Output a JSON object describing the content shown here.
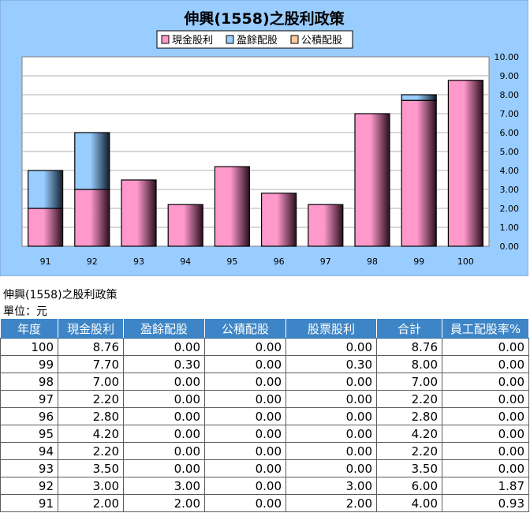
{
  "chart_data": {
    "type": "bar",
    "stacked": true,
    "title": "伸興(1558)之股利政策",
    "categories": [
      "91",
      "92",
      "93",
      "94",
      "95",
      "96",
      "97",
      "98",
      "99",
      "100"
    ],
    "series": [
      {
        "name": "現金股利",
        "values": [
          2.0,
          3.0,
          3.5,
          2.2,
          4.2,
          2.8,
          2.2,
          7.0,
          7.7,
          8.76
        ]
      },
      {
        "name": "盈餘配股",
        "values": [
          2.0,
          3.0,
          0.0,
          0.0,
          0.0,
          0.0,
          0.0,
          0.0,
          0.3,
          0.0
        ]
      },
      {
        "name": "公積配股",
        "values": [
          0.0,
          0.0,
          0.0,
          0.0,
          0.0,
          0.0,
          0.0,
          0.0,
          0.0,
          0.0
        ]
      }
    ],
    "yticks": [
      "0.00",
      "1.00",
      "2.00",
      "3.00",
      "4.00",
      "5.00",
      "6.00",
      "7.00",
      "8.00",
      "9.00",
      "10.00"
    ],
    "ylim": [
      0,
      10
    ],
    "y_axis_side": "right",
    "grid": true,
    "legend_position": "top",
    "colors": {
      "background": "#99ccff",
      "plot_bg": "#ffffff",
      "cash": "#ff99cc",
      "stock_earnings": "#99ccff",
      "stock_reserve": "#ffcc99",
      "bar_edge": "#000000"
    }
  },
  "caption": {
    "title": "伸興(1558)之股利政策",
    "unit": "單位：元"
  },
  "table": {
    "headers": [
      "年度",
      "現金股利",
      "盈餘配股",
      "公積配股",
      "股票股利",
      "合計",
      "員工配股率%"
    ],
    "rows": [
      [
        "100",
        "8.76",
        "0.00",
        "0.00",
        "0.00",
        "8.76",
        "0.00"
      ],
      [
        "99",
        "7.70",
        "0.30",
        "0.00",
        "0.30",
        "8.00",
        "0.00"
      ],
      [
        "98",
        "7.00",
        "0.00",
        "0.00",
        "0.00",
        "7.00",
        "0.00"
      ],
      [
        "97",
        "2.20",
        "0.00",
        "0.00",
        "0.00",
        "2.20",
        "0.00"
      ],
      [
        "96",
        "2.80",
        "0.00",
        "0.00",
        "0.00",
        "2.80",
        "0.00"
      ],
      [
        "95",
        "4.20",
        "0.00",
        "0.00",
        "0.00",
        "4.20",
        "0.00"
      ],
      [
        "94",
        "2.20",
        "0.00",
        "0.00",
        "0.00",
        "2.20",
        "0.00"
      ],
      [
        "93",
        "3.50",
        "0.00",
        "0.00",
        "0.00",
        "3.50",
        "0.00"
      ],
      [
        "92",
        "3.00",
        "3.00",
        "0.00",
        "3.00",
        "6.00",
        "1.87"
      ],
      [
        "91",
        "2.00",
        "2.00",
        "0.00",
        "2.00",
        "4.00",
        "0.93"
      ]
    ]
  }
}
